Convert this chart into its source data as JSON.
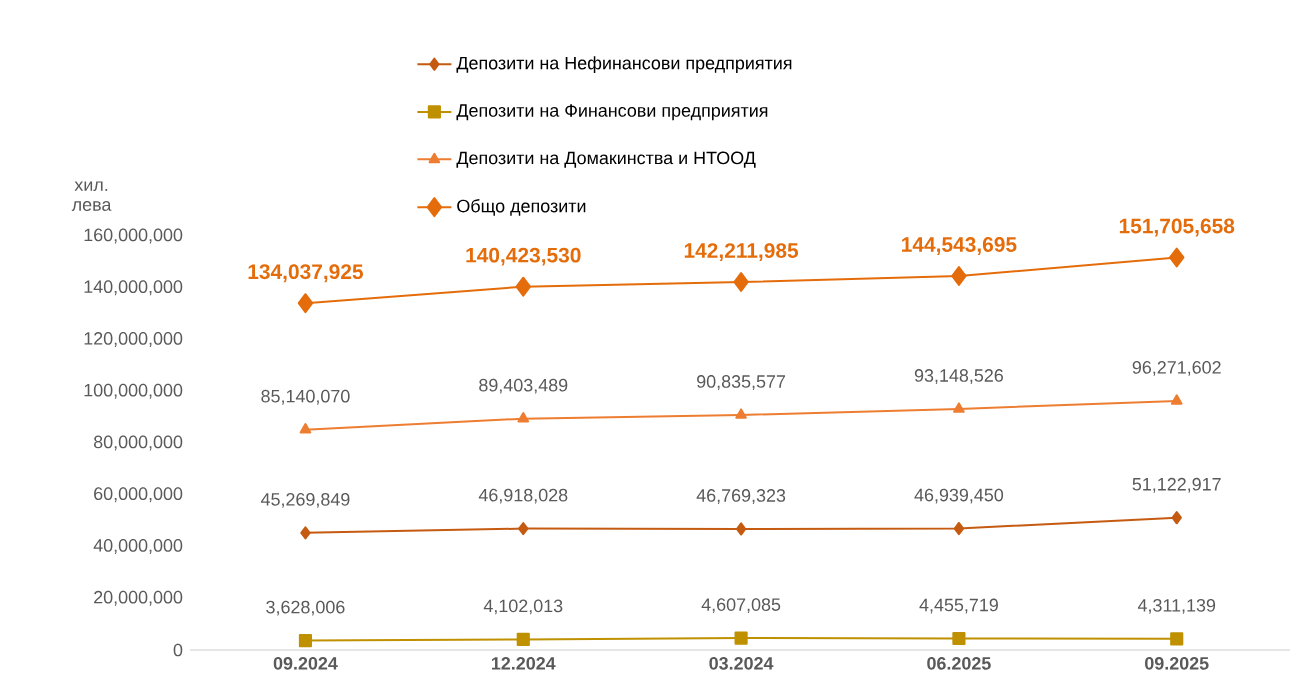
{
  "chart_data": {
    "type": "line",
    "ylabel": "хил. лева",
    "categories": [
      "09.2024",
      "12.2024",
      "03.2024",
      "06.2025",
      "09.2025"
    ],
    "ylim": [
      0,
      160000000
    ],
    "yticks": [
      {
        "value": 0,
        "label": "0"
      },
      {
        "value": 20000000,
        "label": "20,000,000"
      },
      {
        "value": 40000000,
        "label": "40,000,000"
      },
      {
        "value": 60000000,
        "label": "60,000,000"
      },
      {
        "value": 80000000,
        "label": "80,000,000"
      },
      {
        "value": 100000000,
        "label": "100,000,000"
      },
      {
        "value": 120000000,
        "label": "120,000,000"
      },
      {
        "value": 140000000,
        "label": "140,000,000"
      },
      {
        "value": 160000000,
        "label": "160,000,000"
      }
    ],
    "legend": "top",
    "grid": false,
    "series": [
      {
        "name": "Депозити на Нефинансови предприятия",
        "color": "#c55a11",
        "marker": "diamond",
        "values": [
          45269849,
          46918028,
          46769323,
          46939450,
          51122917
        ],
        "value_labels": [
          "45,269,849",
          "46,918,028",
          "46,769,323",
          "46,939,450",
          "51,122,917"
        ]
      },
      {
        "name": "Депозити на Финансови предприятия",
        "color": "#bf9000",
        "marker": "square",
        "values": [
          3628006,
          4102013,
          4607085,
          4455719,
          4311139
        ],
        "value_labels": [
          "3,628,006",
          "4,102,013",
          "4,607,085",
          "4,455,719",
          "4,311,139"
        ]
      },
      {
        "name": "Депозити на Домакинства и НТООД",
        "color": "#ed7d31",
        "marker": "triangle",
        "values": [
          85140070,
          89403489,
          90835577,
          93148526,
          96271602
        ],
        "value_labels": [
          "85,140,070",
          "89,403,489",
          "90,835,577",
          "93,148,526",
          "96,271,602"
        ]
      },
      {
        "name": "Общо депозити",
        "color": "#e46c0a",
        "marker": "diamond",
        "values": [
          134037925,
          140423530,
          142211985,
          144543695,
          151705658
        ],
        "value_labels": [
          "134,037,925",
          "140,423,530",
          "142,211,985",
          "144,543,695",
          "151,705,658"
        ]
      }
    ]
  }
}
